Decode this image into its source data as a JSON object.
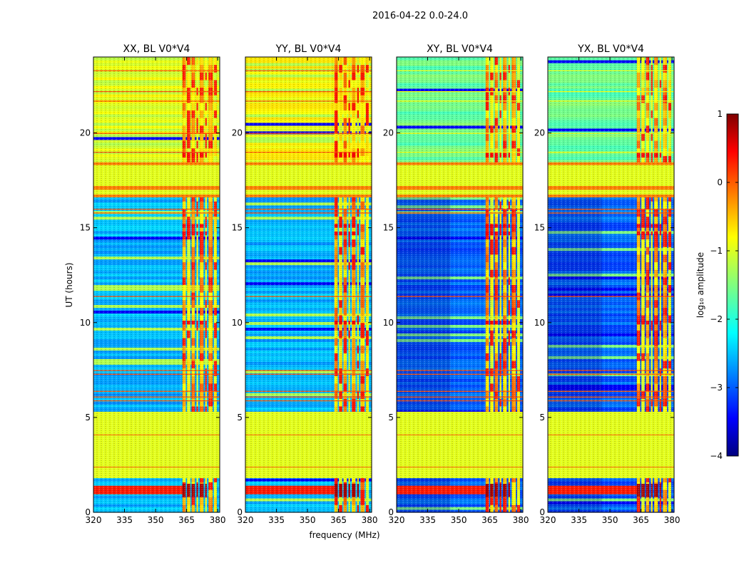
{
  "chart_data": {
    "type": "heatmap",
    "title": "2016-04-22 0.0-24.0",
    "xlabel": "frequency (MHz)",
    "ylabel": "UT (hours)",
    "xlim": [
      320,
      381
    ],
    "ylim": [
      0,
      24
    ],
    "xticks": [
      320,
      335,
      350,
      365,
      380
    ],
    "xtick_labels": [
      "320",
      "335",
      "350",
      "365",
      "380"
    ],
    "yticks": [
      0,
      5,
      10,
      15,
      20
    ],
    "ytick_labels": [
      "0",
      "5",
      "10",
      "15",
      "20"
    ],
    "panels": [
      {
        "name": "XX",
        "title": "XX, BL V0*V4"
      },
      {
        "name": "YY",
        "title": "YY, BL V0*V4"
      },
      {
        "name": "XY",
        "title": "XY, BL V0*V4"
      },
      {
        "name": "YX",
        "title": "YX, BL V0*V4"
      }
    ],
    "colorbar": {
      "label": "log₁₀ amplitude",
      "min": -4,
      "max": 1,
      "ticks": [
        1,
        0,
        -1,
        -2,
        -3,
        -4
      ],
      "tick_labels": [
        "1",
        "0",
        "−1",
        "−2",
        "−3",
        "−4"
      ],
      "colormap": "jet"
    },
    "features": {
      "flagged_time_ranges_hours": [
        [
          1.8,
          5.3
        ],
        [
          16.6,
          18.4
        ]
      ],
      "rfi_frequency_band_MHz": [
        363,
        380
      ],
      "day_segment_hours": [
        18.4,
        24.0
      ]
    }
  }
}
